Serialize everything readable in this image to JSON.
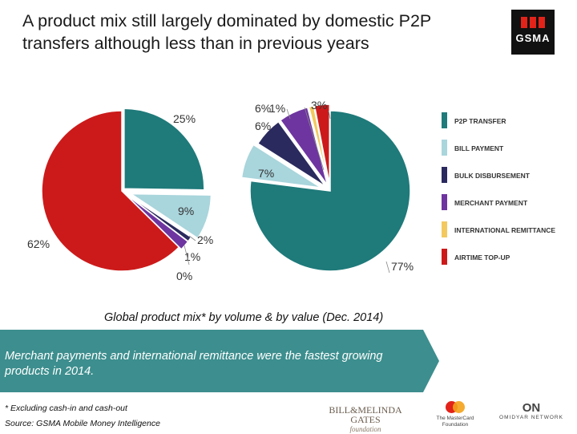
{
  "title": "A product mix still largely dominated by domestic P2P transfers although less than in previous years",
  "logo": "GSMA",
  "caption": "Global product mix* by volume & by value (Dec. 2014)",
  "banner": "Merchant payments and international remittance were the fastest growing products in 2014.",
  "footnote": "* Excluding cash-in and cash-out",
  "source": "Source: GSMA Mobile Money Intelligence",
  "partners": {
    "gates": "BILL&MELINDA GATES",
    "gates_sub": "foundation",
    "mastercard": "The MasterCard Foundation",
    "omidyar": "OMIDYAR NETWORK",
    "omidyar_mark": "ON"
  },
  "colors": {
    "p2p": "#1f7a7a",
    "bill": "#a9d5dc",
    "bulk": "#2a2a5e",
    "merchant": "#6e35a0",
    "remittance": "#f3c95e",
    "airtime": "#cc1a1a",
    "banner": "#3d8e8e"
  },
  "chart_data": [
    {
      "type": "pie",
      "title": "by volume",
      "categories": [
        "P2P TRANSFER",
        "BILL PAYMENT",
        "BULK DISBURSEMENT",
        "MERCHANT PAYMENT",
        "INTERNATIONAL REMITTANCE",
        "AIRTIME TOP-UP"
      ],
      "values": [
        25,
        9,
        1,
        2,
        0,
        62
      ],
      "labels": [
        "25%",
        "9%",
        "1%",
        "2%",
        "0%",
        "62%"
      ]
    },
    {
      "type": "pie",
      "title": "by value",
      "categories": [
        "P2P TRANSFER",
        "BILL PAYMENT",
        "BULK DISBURSEMENT",
        "MERCHANT PAYMENT",
        "INTERNATIONAL REMITTANCE",
        "AIRTIME TOP-UP"
      ],
      "values": [
        77,
        7,
        6,
        6,
        1,
        3
      ],
      "labels": [
        "77%",
        "7%",
        "6%",
        "6%",
        "1%",
        "3%"
      ]
    }
  ],
  "legend": [
    "P2P TRANSFER",
    "BILL PAYMENT",
    "BULK DISBURSEMENT",
    "MERCHANT PAYMENT",
    "INTERNATIONAL REMITTANCE",
    "AIRTIME TOP-UP"
  ]
}
